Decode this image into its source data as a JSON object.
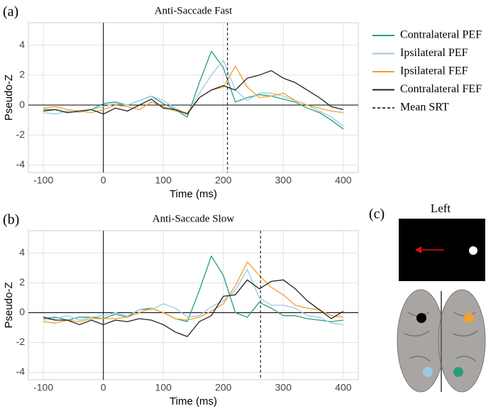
{
  "chart_data": [
    {
      "type": "line",
      "panel_label": "(a)",
      "title": "Anti-Saccade Fast",
      "x_label": "Time (ms)",
      "y_label": "Pseudo-Z",
      "x": [
        -100,
        -80,
        -60,
        -40,
        -20,
        0,
        20,
        40,
        60,
        80,
        100,
        120,
        140,
        160,
        180,
        200,
        220,
        240,
        260,
        280,
        300,
        320,
        340,
        360,
        380,
        400
      ],
      "series": [
        {
          "name": "Contralateral PEF",
          "color": "#2a9d78",
          "values": [
            -0.3,
            -0.3,
            -0.5,
            -0.4,
            -0.3,
            0.1,
            0.2,
            0.0,
            0.3,
            0.6,
            0.1,
            -0.3,
            -0.8,
            1.5,
            3.6,
            2.5,
            0.2,
            0.5,
            0.7,
            0.6,
            0.4,
            0.2,
            -0.2,
            -0.5,
            -1.0,
            -1.6
          ]
        },
        {
          "name": "Ipsilateral PEF",
          "color": "#9ccae6",
          "values": [
            -0.5,
            -0.6,
            -0.4,
            -0.5,
            -0.3,
            -0.1,
            0.1,
            0.0,
            0.3,
            0.6,
            0.3,
            -0.2,
            -0.6,
            0.8,
            2.0,
            3.0,
            1.0,
            0.3,
            0.8,
            0.8,
            0.6,
            0.3,
            0.0,
            -0.4,
            -0.8,
            -1.4
          ]
        },
        {
          "name": "Ipsilateral FEF",
          "color": "#f2a22a",
          "values": [
            -0.2,
            -0.1,
            -0.3,
            -0.4,
            -0.5,
            -0.3,
            0.0,
            -0.1,
            -0.3,
            0.2,
            -0.1,
            -0.4,
            -0.5,
            0.5,
            1.0,
            1.2,
            2.6,
            1.2,
            0.5,
            0.6,
            0.8,
            0.3,
            0.0,
            -0.2,
            -0.4,
            -0.5
          ]
        },
        {
          "name": "Contralateral FEF",
          "color": "#222222",
          "values": [
            -0.4,
            -0.3,
            -0.5,
            -0.4,
            -0.3,
            -0.6,
            -0.2,
            -0.4,
            0.0,
            0.4,
            -0.2,
            -0.3,
            -0.6,
            0.5,
            1.0,
            1.3,
            1.0,
            1.8,
            2.0,
            2.3,
            1.8,
            1.5,
            1.0,
            0.5,
            -0.1,
            -0.3
          ]
        }
      ],
      "mean_srt": 207,
      "mean_srt_label": "Mean SRT",
      "hline": 0,
      "vline": 0,
      "xlim": [
        -125,
        425
      ],
      "xticks": [
        -100,
        0,
        100,
        200,
        300,
        400
      ],
      "ylim": [
        -4.5,
        5.5
      ],
      "yticks": [
        -4,
        -2,
        0,
        2,
        4
      ],
      "grid": true
    },
    {
      "type": "line",
      "panel_label": "(b)",
      "title": "Anti-Saccade Slow",
      "x_label": "Time (ms)",
      "y_label": "Pseudo-Z",
      "x": [
        -100,
        -80,
        -60,
        -40,
        -20,
        0,
        20,
        40,
        60,
        80,
        100,
        120,
        140,
        160,
        180,
        200,
        220,
        240,
        260,
        280,
        300,
        320,
        340,
        360,
        380,
        400
      ],
      "series": [
        {
          "color": "#2a9d78",
          "values": [
            -0.4,
            -0.3,
            -0.5,
            -0.3,
            -0.3,
            -0.4,
            -0.1,
            -0.3,
            0.2,
            0.3,
            0.0,
            -0.4,
            -0.6,
            1.5,
            3.8,
            2.5,
            0.0,
            -0.3,
            0.7,
            0.3,
            -0.2,
            -0.2,
            -0.4,
            -0.5,
            -0.6,
            -0.5
          ]
        },
        {
          "color": "#9ccae6",
          "values": [
            -0.5,
            -0.4,
            -0.2,
            -0.5,
            -0.3,
            -0.2,
            0.0,
            -0.2,
            0.2,
            0.2,
            0.6,
            0.3,
            -0.3,
            -0.2,
            0.4,
            0.8,
            1.5,
            2.9,
            1.0,
            0.5,
            0.5,
            0.3,
            -0.2,
            -0.3,
            -0.7,
            -0.8
          ]
        },
        {
          "color": "#f2a22a",
          "values": [
            -0.6,
            -0.7,
            -0.5,
            -0.6,
            -0.4,
            -0.4,
            -0.4,
            -0.3,
            0.0,
            0.3,
            0.0,
            -0.4,
            -0.5,
            -0.3,
            0.1,
            0.6,
            1.8,
            3.4,
            2.5,
            1.7,
            1.2,
            0.5,
            0.3,
            0.2,
            -0.2,
            -0.3
          ]
        },
        {
          "color": "#222222",
          "values": [
            -0.3,
            -0.5,
            -0.5,
            -0.8,
            -0.5,
            -0.8,
            -0.5,
            -0.6,
            -0.4,
            -0.5,
            -0.8,
            -1.3,
            -1.6,
            -0.6,
            -0.2,
            1.1,
            1.2,
            2.2,
            1.6,
            2.1,
            2.2,
            1.6,
            0.8,
            0.2,
            -0.4,
            0.1
          ]
        }
      ],
      "mean_srt": 262,
      "hline": 0,
      "vline": 0,
      "xlim": [
        -125,
        425
      ],
      "xticks": [
        -100,
        0,
        100,
        200,
        300,
        400
      ],
      "ylim": [
        -4.5,
        5.5
      ],
      "yticks": [
        -4,
        -2,
        0,
        2,
        4
      ],
      "grid": true
    }
  ],
  "panel_c": {
    "label": "(c)",
    "title": "Left"
  }
}
